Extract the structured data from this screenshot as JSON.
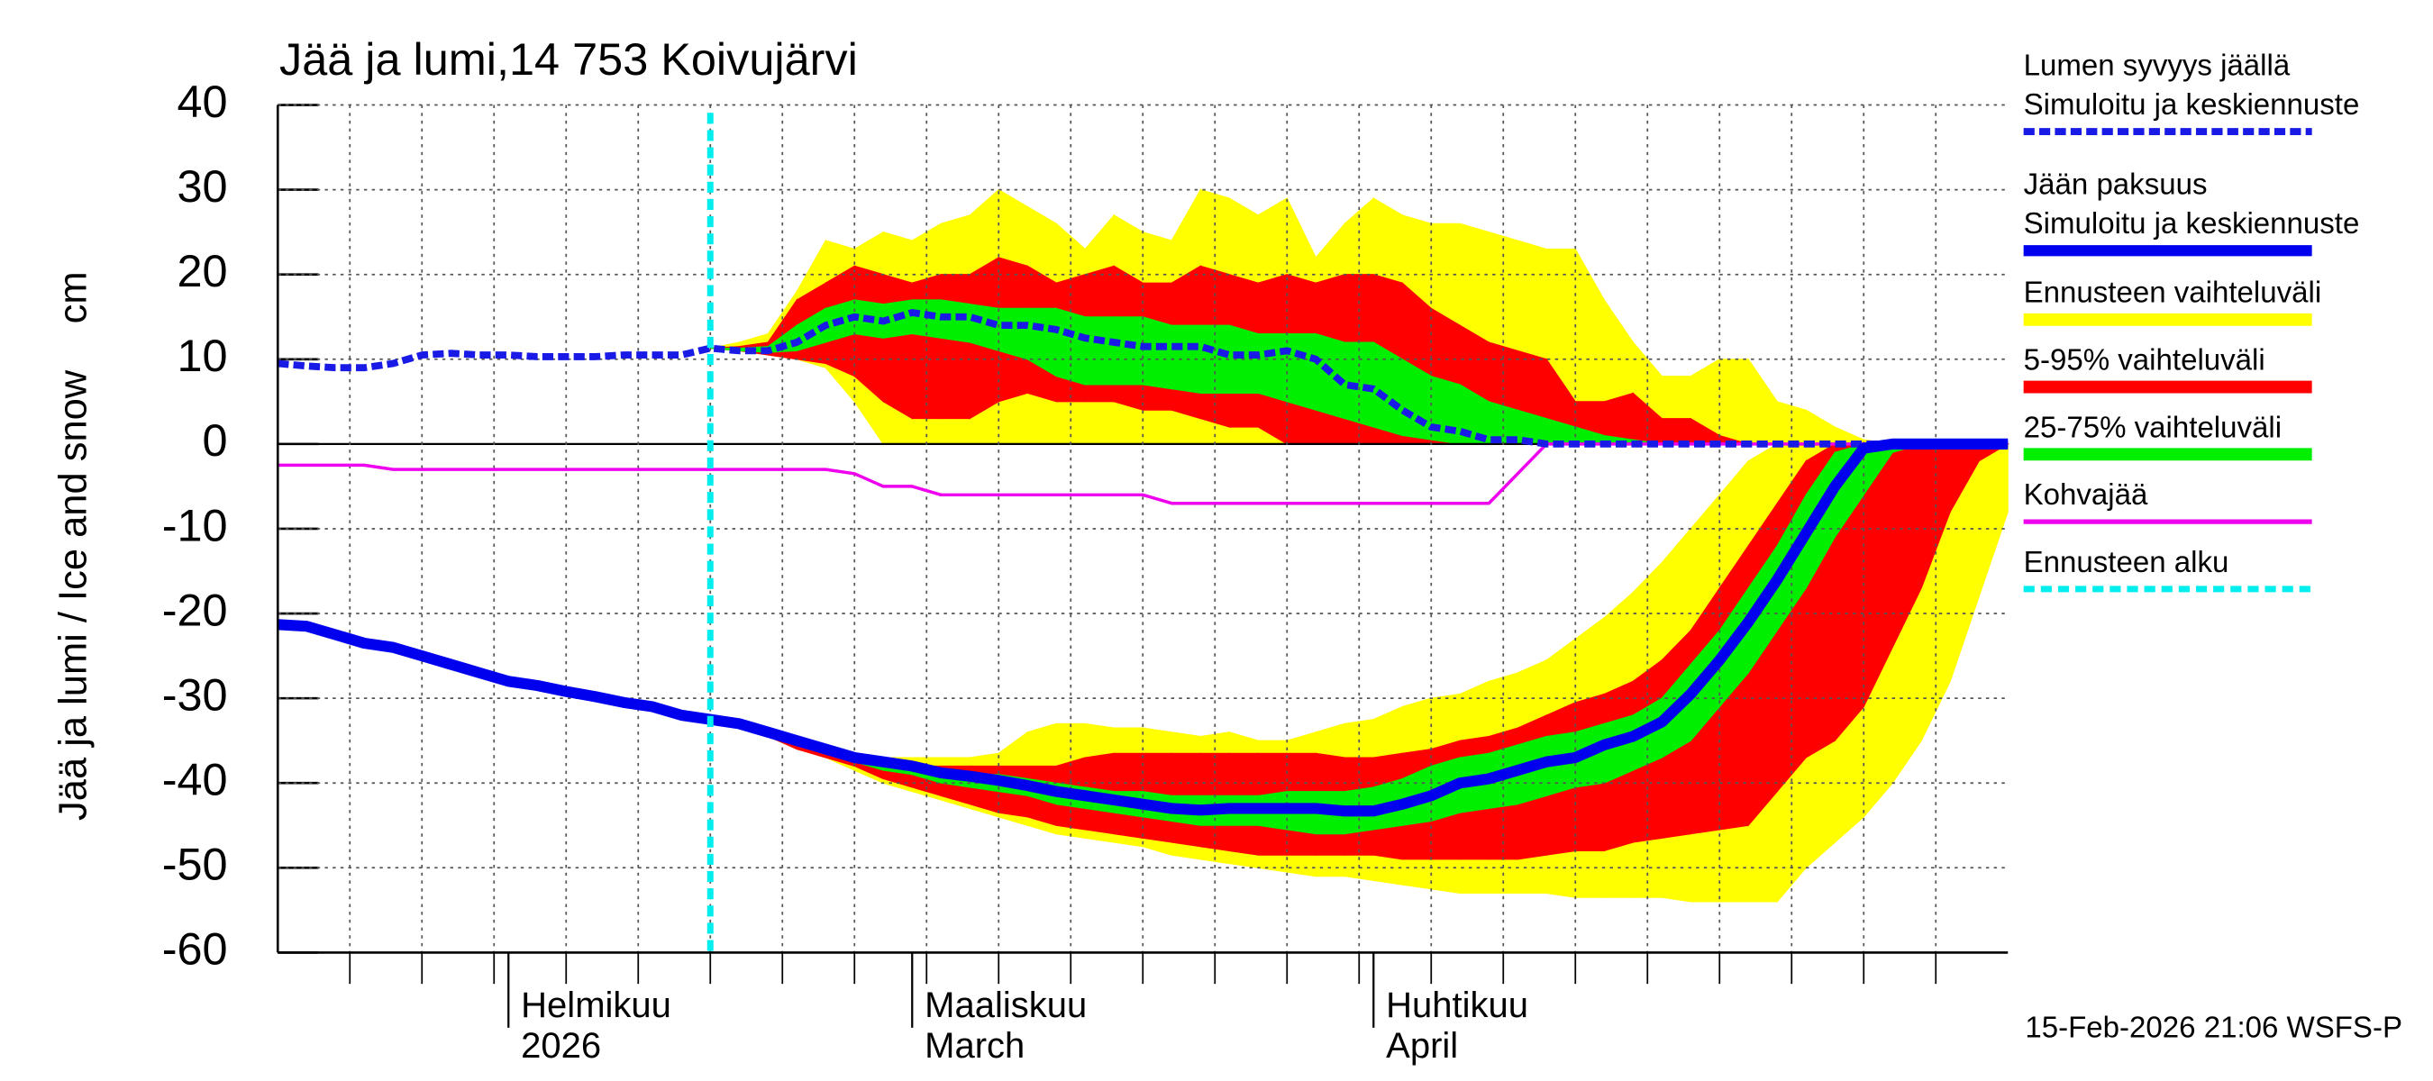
{
  "chart_data": {
    "type": "line",
    "title": "Jää ja lumi,14 753 Koivujärvi",
    "y_label": "Jää ja lumi / Ice and snow",
    "y_unit": "cm",
    "footer": "15-Feb-2026 21:06 WSFS-P",
    "ylim": [
      -60,
      40
    ],
    "yticks": [
      -60,
      -50,
      -40,
      -30,
      -20,
      -10,
      0,
      10,
      20,
      30,
      40
    ],
    "grid": true,
    "categories": [
      null,
      null,
      null,
      null,
      null,
      null,
      null,
      null,
      [
        "Helmikuu",
        "2026"
      ],
      null,
      null,
      null,
      null,
      null,
      null,
      null,
      null,
      null,
      null,
      null,
      null,
      null,
      [
        "Maaliskuu",
        "March"
      ],
      null,
      null,
      null,
      null,
      null,
      null,
      null,
      null,
      null,
      null,
      null,
      null,
      null,
      null,
      null,
      [
        "Huhtikuu",
        "April"
      ],
      null,
      null,
      null,
      null,
      null,
      null,
      null,
      null,
      null,
      null,
      null,
      null,
      null,
      null,
      null,
      null,
      null,
      null,
      null,
      null,
      null,
      null
    ],
    "forecast_start": 15,
    "forecast_line": {
      "name": "Ennusteen alku",
      "color": "#00eeee"
    },
    "series": [
      {
        "name": [
          "Lumen syvyys jäällä",
          "Simuloitu ja keskiennuste"
        ],
        "color": "#1a1ae6",
        "style": "dashed",
        "values": [
          9.5,
          9.2,
          9,
          9,
          9.5,
          10.5,
          10.7,
          10.5,
          10.5,
          10.3,
          10.3,
          10.3,
          10.5,
          10.5,
          10.5,
          11.3,
          11,
          11,
          12,
          14,
          15,
          14.5,
          15.5,
          15,
          15,
          14,
          14,
          13.5,
          12.5,
          12,
          11.5,
          11.5,
          11.5,
          10.5,
          10.5,
          11,
          10,
          7,
          6.5,
          4,
          2,
          1.5,
          0.5,
          0.5,
          0,
          0,
          0,
          0,
          0,
          0,
          0,
          0,
          0,
          0,
          0,
          0,
          0,
          0,
          0,
          0,
          0
        ]
      },
      {
        "name": [
          "Jään paksuus",
          "Simuloitu ja keskiennuste"
        ],
        "color": "#0000ee",
        "style": "solid",
        "values": [
          -21.3,
          -21.5,
          -22.5,
          -23.5,
          -24,
          -25,
          -26,
          -27,
          -28,
          -28.5,
          -29.2,
          -29.8,
          -30.5,
          -31,
          -32,
          -32.5,
          -33,
          -34,
          -35,
          -36,
          -37,
          -37.5,
          -38,
          -38.8,
          -39.2,
          -39.7,
          -40.3,
          -41,
          -41.5,
          -42,
          -42.5,
          -43,
          -43.2,
          -43,
          -43,
          -43,
          -43,
          -43.3,
          -43.3,
          -42.5,
          -41.5,
          -40,
          -39.5,
          -38.5,
          -37.5,
          -37,
          -35.5,
          -34.5,
          -32.8,
          -29.5,
          -25.5,
          -21,
          -16,
          -10.5,
          -5,
          -0.5,
          0,
          0,
          0,
          0,
          0
        ]
      },
      {
        "name": [
          "Kohvajää"
        ],
        "color": "#ee00ee",
        "style": "thin",
        "values": [
          -2.5,
          -2.5,
          -2.5,
          -2.5,
          -3,
          -3,
          -3,
          -3,
          -3,
          -3,
          -3,
          -3,
          -3,
          -3,
          -3,
          -3,
          -3,
          -3,
          -3,
          -3,
          -3.5,
          -5,
          -5,
          -6,
          -6,
          -6,
          -6,
          -6,
          -6,
          -6,
          -6,
          -7,
          -7,
          -7,
          -7,
          -7,
          -7,
          -7,
          -7,
          -7,
          -7,
          -7,
          -7,
          -3.5,
          0,
          0,
          0,
          0,
          0,
          0,
          0,
          0,
          0,
          0,
          0,
          0,
          0,
          0,
          0,
          0,
          0
        ]
      }
    ],
    "bands": [
      {
        "name": "Ennusteen vaihteluväli",
        "color": "#ffff00",
        "snow_high": [
          null,
          null,
          null,
          null,
          null,
          null,
          null,
          null,
          null,
          null,
          null,
          null,
          null,
          null,
          null,
          11.3,
          12,
          13,
          18,
          24,
          23,
          25,
          24,
          26,
          27,
          30,
          28,
          26,
          23,
          27,
          25,
          24,
          30,
          29,
          27,
          29,
          22,
          26,
          29,
          27,
          26,
          26,
          25,
          24,
          23,
          23,
          17,
          12,
          8,
          8,
          10,
          10,
          5,
          4,
          2,
          0.5,
          0,
          0,
          0,
          0,
          0
        ],
        "snow_low": [
          null,
          null,
          null,
          null,
          null,
          null,
          null,
          null,
          null,
          null,
          null,
          null,
          null,
          null,
          null,
          11.3,
          11,
          10.5,
          10,
          9,
          5,
          0,
          0,
          0,
          0,
          0,
          0,
          0,
          0,
          0,
          0,
          0,
          0,
          0,
          0,
          0,
          0,
          0,
          0,
          0,
          0,
          0,
          0,
          0,
          0,
          0,
          0,
          0,
          0,
          0,
          0,
          0,
          0,
          0,
          0,
          0,
          0,
          0,
          0,
          0,
          0
        ],
        "ice_high": [
          null,
          null,
          null,
          null,
          null,
          null,
          null,
          null,
          null,
          null,
          null,
          null,
          null,
          null,
          null,
          -32.5,
          -33,
          -34,
          -35,
          -36,
          -36.5,
          -37,
          -37,
          -37,
          -37,
          -36.5,
          -34,
          -33,
          -33,
          -33.5,
          -33.5,
          -34,
          -34.5,
          -34,
          -35,
          -35,
          -34,
          -33,
          -32.5,
          -31,
          -30,
          -29.5,
          -28,
          -27,
          -25.5,
          -23,
          -20.5,
          -17.5,
          -14,
          -10,
          -6,
          -2,
          0,
          0,
          0,
          0,
          0,
          0,
          0,
          0,
          0
        ],
        "ice_low": [
          null,
          null,
          null,
          null,
          null,
          null,
          null,
          null,
          null,
          null,
          null,
          null,
          null,
          null,
          null,
          -32.5,
          -33.5,
          -34.5,
          -36,
          -37,
          -38.5,
          -40,
          -41,
          -42,
          -43,
          -44,
          -45,
          -46,
          -46.5,
          -47,
          -47.5,
          -48.5,
          -49,
          -49.5,
          -50,
          -50.5,
          -51,
          -51,
          -51.5,
          -52,
          -52.5,
          -53,
          -53,
          -53,
          -53,
          -53.5,
          -53.5,
          -53.5,
          -53.5,
          -54,
          -54,
          -54,
          -54,
          -50,
          -47,
          -44,
          -40,
          -35,
          -28,
          -18,
          -8
        ]
      },
      {
        "name": "5-95% vaihteluväli",
        "color": "#ff0000",
        "snow_high": [
          null,
          null,
          null,
          null,
          null,
          null,
          null,
          null,
          null,
          null,
          null,
          null,
          null,
          null,
          null,
          11.3,
          11.5,
          12,
          17,
          19,
          21,
          20,
          19,
          20,
          20,
          22,
          21,
          19,
          20,
          21,
          19,
          19,
          21,
          20,
          19,
          20,
          19,
          20,
          20,
          19,
          16,
          14,
          12,
          11,
          10,
          5,
          5,
          6,
          3,
          3,
          1,
          0,
          0,
          0,
          0,
          0,
          0,
          0,
          0,
          0,
          0
        ],
        "snow_low": [
          null,
          null,
          null,
          null,
          null,
          null,
          null,
          null,
          null,
          null,
          null,
          null,
          null,
          null,
          null,
          11.3,
          11,
          10.5,
          10,
          9.5,
          8,
          5,
          3,
          3,
          3,
          5,
          6,
          5,
          5,
          5,
          4,
          4,
          3,
          2,
          2,
          0,
          0,
          0,
          0,
          0,
          0,
          0,
          0,
          0,
          0,
          0,
          0,
          0,
          0,
          0,
          0,
          0,
          0,
          0,
          0,
          0,
          0,
          0,
          0,
          0,
          0
        ],
        "ice_high": [
          null,
          null,
          null,
          null,
          null,
          null,
          null,
          null,
          null,
          null,
          null,
          null,
          null,
          null,
          null,
          -32.5,
          -33,
          -34,
          -35,
          -36,
          -37,
          -37.5,
          -38,
          -38,
          -38,
          -38,
          -38,
          -38,
          -37,
          -36.5,
          -36.5,
          -36.5,
          -36.5,
          -36.5,
          -36.5,
          -36.5,
          -36.5,
          -37,
          -37,
          -36.5,
          -36,
          -35,
          -34.5,
          -33.5,
          -32,
          -30.5,
          -29.5,
          -28,
          -25.5,
          -22,
          -17,
          -12,
          -7,
          -2,
          0,
          0,
          0,
          0,
          0,
          0,
          0
        ],
        "ice_low": [
          null,
          null,
          null,
          null,
          null,
          null,
          null,
          null,
          null,
          null,
          null,
          null,
          null,
          null,
          null,
          -32.5,
          -33.5,
          -34.5,
          -36,
          -37,
          -38,
          -39.5,
          -40.5,
          -41.5,
          -42.5,
          -43.5,
          -44,
          -45,
          -45.5,
          -46,
          -46.5,
          -47,
          -47.5,
          -48,
          -48.5,
          -48.5,
          -48.5,
          -48.5,
          -48.5,
          -49,
          -49,
          -49,
          -49,
          -49,
          -48.5,
          -48,
          -48,
          -47,
          -46.5,
          -46,
          -45.5,
          -45,
          -41,
          -37,
          -35,
          -31,
          -24,
          -17,
          -8,
          -2,
          0
        ]
      },
      {
        "name": "25-75% vaihteluväli",
        "color": "#00ee00",
        "snow_high": [
          null,
          null,
          null,
          null,
          null,
          null,
          null,
          null,
          null,
          null,
          null,
          null,
          null,
          null,
          null,
          11.3,
          11.3,
          11.5,
          14,
          16,
          17,
          16.5,
          17,
          17,
          16.5,
          16,
          16,
          16,
          15,
          15,
          15,
          14,
          14,
          14,
          13,
          13,
          13,
          12,
          12,
          10,
          8,
          7,
          5,
          4,
          3,
          2,
          1,
          0.5,
          0,
          0,
          0,
          0,
          0,
          0,
          0,
          0,
          0,
          0,
          0,
          0,
          0
        ],
        "snow_low": [
          null,
          null,
          null,
          null,
          null,
          null,
          null,
          null,
          null,
          null,
          null,
          null,
          null,
          null,
          null,
          11.3,
          11,
          10.8,
          11,
          12,
          13,
          12.5,
          13,
          12.5,
          12,
          11,
          10,
          8,
          7,
          7,
          7,
          6.5,
          6,
          6,
          6,
          5,
          4,
          3,
          2,
          1,
          0.5,
          0,
          0,
          0,
          0,
          0,
          0,
          0,
          0,
          0,
          0,
          0,
          0,
          0,
          0,
          0,
          0,
          0,
          0,
          0,
          0
        ],
        "ice_high": [
          null,
          null,
          null,
          null,
          null,
          null,
          null,
          null,
          null,
          null,
          null,
          null,
          null,
          null,
          null,
          -32.5,
          -33,
          -34,
          -35,
          -36,
          -37,
          -37.5,
          -38,
          -38.5,
          -39,
          -39,
          -39.5,
          -40,
          -40.5,
          -41,
          -41,
          -41.5,
          -41.5,
          -41.5,
          -41.5,
          -41,
          -41,
          -41,
          -40.5,
          -39.5,
          -38,
          -37,
          -36.5,
          -35.5,
          -34.5,
          -34,
          -33,
          -32,
          -30,
          -26,
          -22,
          -17,
          -12,
          -6,
          -1,
          0,
          0,
          0,
          0,
          0,
          0
        ],
        "ice_low": [
          null,
          null,
          null,
          null,
          null,
          null,
          null,
          null,
          null,
          null,
          null,
          null,
          null,
          null,
          null,
          -32.5,
          -33.3,
          -34.3,
          -35.5,
          -36.5,
          -37.5,
          -38.5,
          -39,
          -40,
          -40.5,
          -41,
          -41.5,
          -42.5,
          -43,
          -43.5,
          -44,
          -44.5,
          -45,
          -45,
          -45,
          -45.5,
          -46,
          -46,
          -45.5,
          -45,
          -44.5,
          -43.5,
          -43,
          -42.5,
          -41.5,
          -40.5,
          -40,
          -38.5,
          -37,
          -35,
          -31,
          -27,
          -22,
          -17,
          -11,
          -6,
          -1,
          0,
          0,
          0,
          0
        ]
      }
    ]
  }
}
